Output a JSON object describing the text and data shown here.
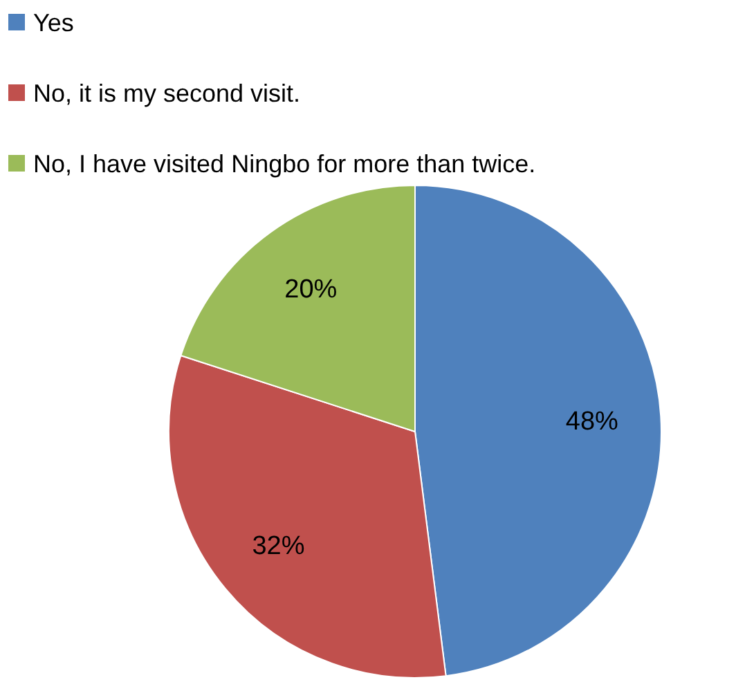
{
  "chart_data": {
    "type": "pie",
    "categories": [
      "Yes",
      "No, it is my second visit.",
      "No, I have visited Ningbo for more than twice."
    ],
    "values": [
      48,
      32,
      20
    ],
    "colors": [
      "#4f81bd",
      "#c0504d",
      "#9bbb59"
    ],
    "value_labels": [
      "48%",
      "32%",
      "20%"
    ],
    "legend": "top left"
  }
}
